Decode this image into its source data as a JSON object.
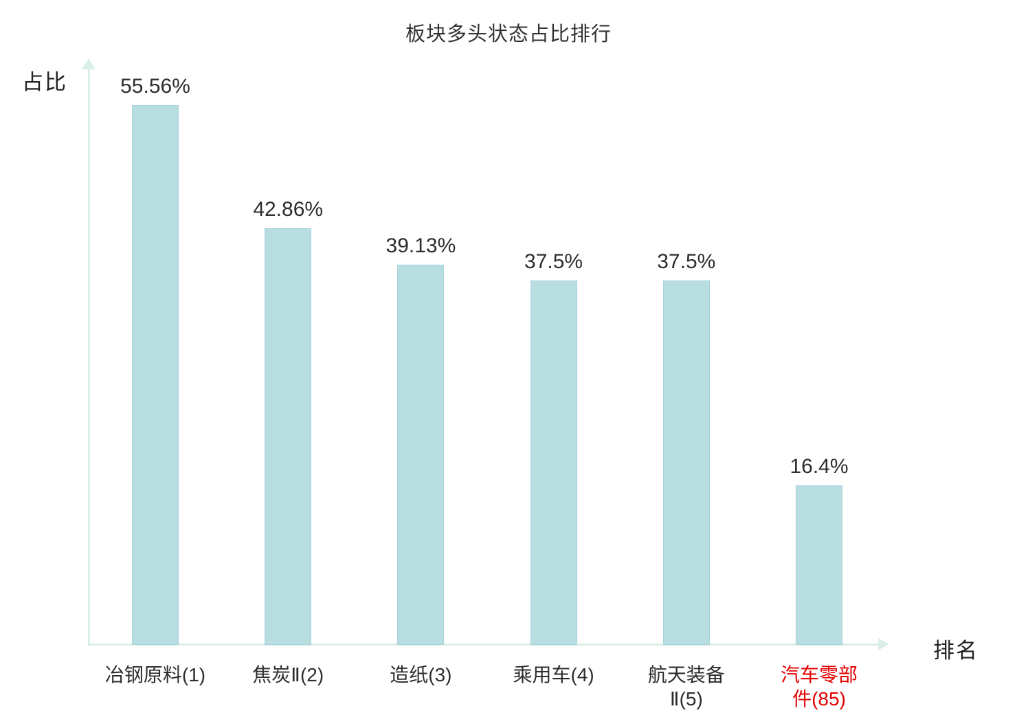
{
  "title": "板块多头状态占比排行",
  "axes": {
    "y_label": "占比",
    "x_label": "排名"
  },
  "colors": {
    "bar_fill": "#b9dee2",
    "bar_border": "#a5d2d9",
    "axis": "#d9efe8",
    "text": "#2d2d2d",
    "highlight_text": "#e60000",
    "background": "#ffffff"
  },
  "chart_data": {
    "type": "bar",
    "title": "板块多头状态占比排行",
    "xlabel": "排名",
    "ylabel": "占比",
    "ylim": [
      0,
      60
    ],
    "grid": false,
    "legend": false,
    "categories": [
      "冶钢原料(1)",
      "焦炭Ⅱ(2)",
      "造纸(3)",
      "乘用车(4)",
      "航天装备Ⅱ(5)",
      "汽车零部件(85)"
    ],
    "values": [
      55.56,
      42.86,
      39.13,
      37.5,
      37.5,
      16.4
    ],
    "value_labels": [
      "55.56%",
      "42.86%",
      "39.13%",
      "37.5%",
      "37.5%",
      "16.4%"
    ],
    "bars": [
      {
        "category": "冶钢原料(1)",
        "display_label": "冶钢原料(1)",
        "value": 55.56,
        "value_label": "55.56%",
        "highlight": false
      },
      {
        "category": "焦炭Ⅱ(2)",
        "display_label": "焦炭Ⅱ(2)",
        "value": 42.86,
        "value_label": "42.86%",
        "highlight": false
      },
      {
        "category": "造纸(3)",
        "display_label": "造纸(3)",
        "value": 39.13,
        "value_label": "39.13%",
        "highlight": false
      },
      {
        "category": "乘用车(4)",
        "display_label": "乘用车(4)",
        "value": 37.5,
        "value_label": "37.5%",
        "highlight": false
      },
      {
        "category": "航天装备Ⅱ(5)",
        "display_label": "航天装备\nⅡ(5)",
        "value": 37.5,
        "value_label": "37.5%",
        "highlight": false
      },
      {
        "category": "汽车零部件(85)",
        "display_label": "汽车零部\n件(85)",
        "value": 16.4,
        "value_label": "16.4%",
        "highlight": true
      }
    ]
  }
}
